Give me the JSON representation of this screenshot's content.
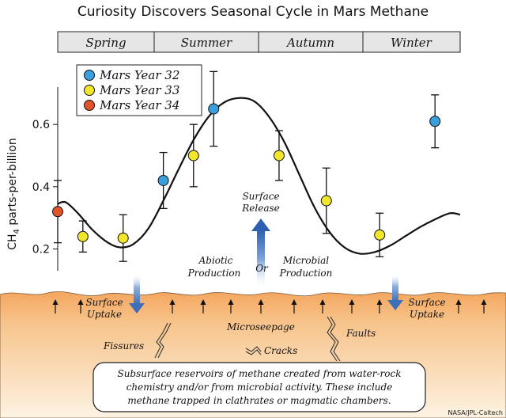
{
  "chart_data": {
    "type": "scatter",
    "title": "Curiosity Discovers Seasonal Cycle in Mars Methane",
    "ylabel": "CH4 parts-per-billion",
    "ylabel_main": "CH",
    "ylabel_sub": "4",
    "ylabel_rest": " parts-per-billion",
    "ylim": [
      0.13,
      0.72
    ],
    "yticks": [
      0.2,
      0.4,
      0.6
    ],
    "ytick_labels": [
      "0.2",
      "0.4",
      "0.6"
    ],
    "grid": false,
    "legend_placement": "top-left",
    "x_domain": [
      0,
      4
    ],
    "seasons": [
      "Spring",
      "Summer",
      "Autumn",
      "Winter"
    ],
    "season_bounds": [
      0,
      0.92,
      1.92,
      2.92,
      4
    ],
    "series": [
      {
        "name": "Mars Year 32",
        "color": "#3a9fdc",
        "points": [
          {
            "x": 1.05,
            "y": 0.42,
            "err": 0.09
          },
          {
            "x": 1.55,
            "y": 0.65,
            "err": 0.12
          },
          {
            "x": 3.75,
            "y": 0.61,
            "err": 0.085
          }
        ]
      },
      {
        "name": "Mars Year 33",
        "color": "#f2e62b",
        "points": [
          {
            "x": 0.25,
            "y": 0.24,
            "err": 0.05
          },
          {
            "x": 0.65,
            "y": 0.235,
            "err": 0.075
          },
          {
            "x": 1.35,
            "y": 0.5,
            "err": 0.1
          },
          {
            "x": 2.2,
            "y": 0.5,
            "err": 0.08
          },
          {
            "x": 2.67,
            "y": 0.355,
            "err": 0.105
          },
          {
            "x": 3.2,
            "y": 0.245,
            "err": 0.07
          }
        ]
      },
      {
        "name": "Mars Year 34",
        "color": "#e0542b",
        "points": [
          {
            "x": 0.0,
            "y": 0.32,
            "err": 0.1
          }
        ]
      }
    ],
    "fit_curve": {
      "x": [
        0,
        0.08,
        0.2,
        0.35,
        0.5,
        0.62,
        0.75,
        0.9,
        1.05,
        1.2,
        1.35,
        1.5,
        1.65,
        1.8,
        1.95,
        2.1,
        2.25,
        2.4,
        2.55,
        2.7,
        2.85,
        3.0,
        3.15,
        3.3,
        3.45,
        3.6,
        3.75,
        3.9,
        4.0
      ],
      "y": [
        0.345,
        0.35,
        0.315,
        0.26,
        0.22,
        0.205,
        0.215,
        0.265,
        0.355,
        0.455,
        0.55,
        0.625,
        0.67,
        0.685,
        0.675,
        0.625,
        0.545,
        0.44,
        0.335,
        0.255,
        0.205,
        0.185,
        0.19,
        0.21,
        0.24,
        0.27,
        0.295,
        0.315,
        0.31
      ]
    }
  },
  "annotations": {
    "surface_release_1": "Surface",
    "surface_release_2": "Release",
    "abiotic_1": "Abiotic",
    "abiotic_2": "Production",
    "or": "Or",
    "microbial_1": "Microbial",
    "microbial_2": "Production",
    "uptake_left_1": "Surface",
    "uptake_left_2": "Uptake",
    "uptake_right_1": "Surface",
    "uptake_right_2": "Uptake",
    "microseepage": "Microseepage",
    "fissures": "Fissures",
    "cracks": "Cracks",
    "faults": "Faults",
    "reservoir_1": "Subsurface reservoirs of methane created from water-rock",
    "reservoir_2": "chemistry and/or from microbial activity. These include",
    "reservoir_3": "methane trapped in clathrates or magmatic chambers.",
    "credit": "NASA/JPL-Caltech"
  },
  "colors": {
    "ground_top": "#fbeed2",
    "ground_bottom": "#f2a05a",
    "season_bar": "#e6e6e6",
    "arrow_blue": "#3d6fb8"
  }
}
